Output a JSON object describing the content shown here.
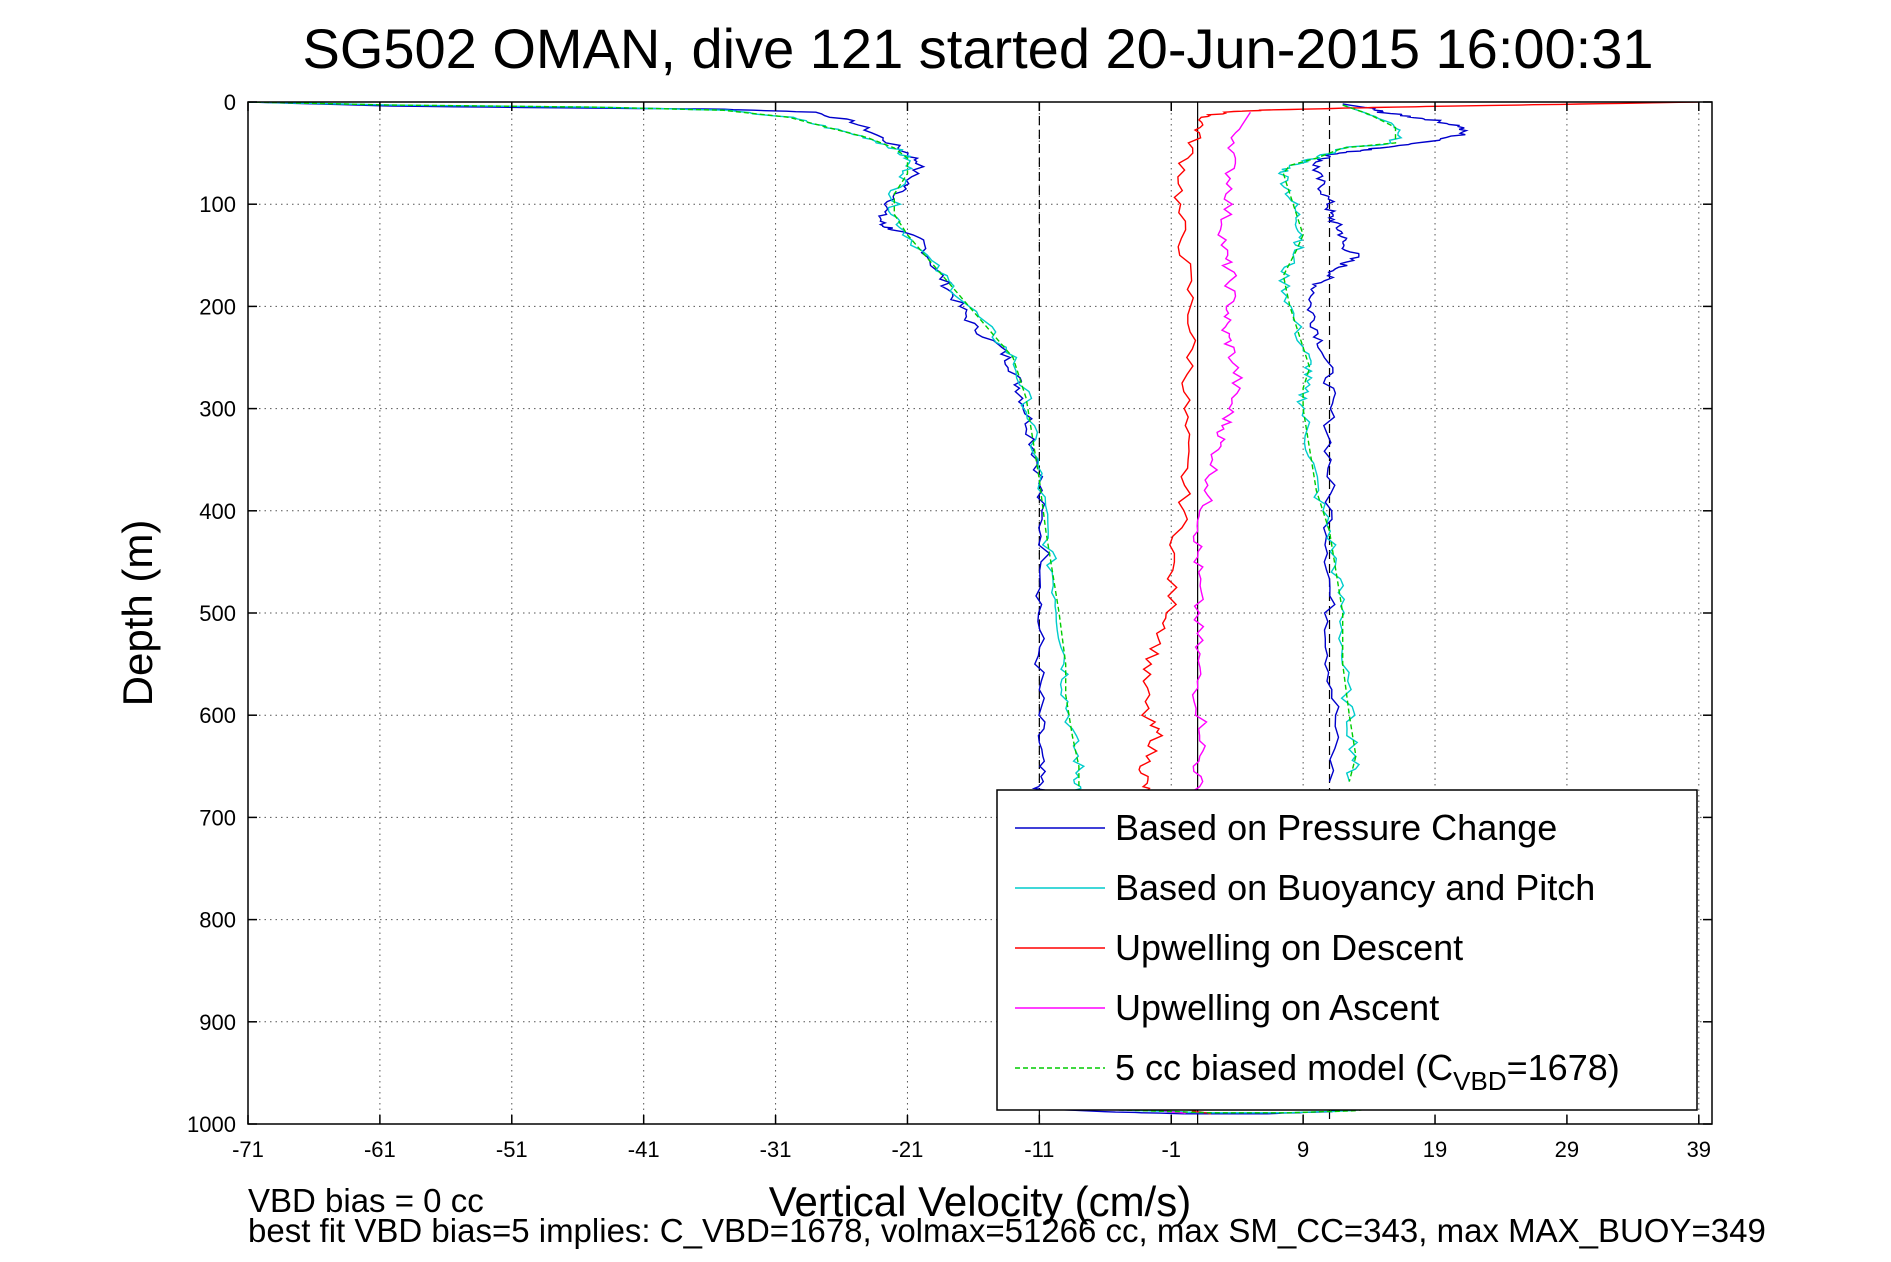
{
  "chart_data": {
    "type": "line",
    "title": "SG502 OMAN, dive 121 started 20-Jun-2015 16:00:31",
    "xlabel": "Vertical Velocity (cm/s)",
    "ylabel": "Depth (m)",
    "xlim": [
      -71,
      40
    ],
    "ylim": [
      1000,
      0
    ],
    "y_reversed": true,
    "xticks": [
      -71,
      -61,
      -51,
      -41,
      -31,
      -21,
      -11,
      -1,
      9,
      19,
      29,
      39
    ],
    "yticks": [
      0,
      100,
      200,
      300,
      400,
      500,
      600,
      700,
      800,
      900,
      1000
    ],
    "grid": true,
    "legend_position": "bottom-right",
    "reference_lines": [
      {
        "x": -11,
        "style": "dashed"
      },
      {
        "x": 1,
        "style": "solid"
      },
      {
        "x": 11,
        "style": "dashed"
      }
    ],
    "series": [
      {
        "name": "Based on Pressure Change",
        "color": "#0000cc",
        "segments": [
          {
            "x": [
              -71,
              -60,
              -45,
              -35,
              -28,
              -25,
              -23,
              -21,
              -20,
              -21,
              -22,
              -23,
              -23,
              -22,
              -20,
              -19,
              -18,
              -17,
              -16,
              -14,
              -13,
              -12.5,
              -12,
              -11.5,
              -11,
              -11,
              -10.5,
              -11,
              -11,
              -11,
              -11,
              -11,
              -11
            ],
            "y": [
              0,
              4,
              6,
              7,
              10,
              20,
              35,
              50,
              60,
              80,
              95,
              110,
              120,
              125,
              135,
              160,
              180,
              200,
              220,
              240,
              260,
              280,
              300,
              330,
              360,
              400,
              450,
              500,
              550,
              600,
              640,
              670,
              680
            ]
          },
          {
            "x": [
              12,
              14,
              15,
              17,
              19,
              21,
              21,
              18,
              15,
              13,
              11,
              10,
              10,
              10.5,
              11,
              11,
              11.5,
              12,
              12,
              13,
              12,
              11,
              10,
              9.5,
              10,
              10.5,
              11,
              11,
              11,
              11,
              11,
              11,
              11,
              11.5,
              11
            ],
            "y": [
              2,
              6,
              10,
              14,
              18,
              24,
              32,
              40,
              45,
              48,
              52,
              60,
              70,
              85,
              100,
              110,
              120,
              130,
              140,
              150,
              160,
              170,
              180,
              200,
              220,
              240,
              270,
              300,
              350,
              400,
              450,
              500,
              550,
              600,
              665
            ]
          },
          {
            "x": [
              -11,
              -6,
              0,
              6,
              11,
              14
            ],
            "y": [
              985,
              988,
              990,
              990,
              988,
              985
            ]
          }
        ]
      },
      {
        "name": "Based on Buoyancy and Pitch",
        "color": "#00cccc",
        "segments": [
          {
            "x": [
              -71,
              -60,
              -45,
              -35,
              -30,
              -27,
              -24,
              -22,
              -21,
              -21,
              -22,
              -22,
              -21,
              -19,
              -17,
              -15,
              -13,
              -12,
              -11.5,
              -11,
              -10.5,
              -10,
              -9.5,
              -9,
              -9,
              -8.5,
              -8,
              -8,
              -8
            ],
            "y": [
              0,
              3,
              5,
              8,
              15,
              25,
              35,
              45,
              55,
              70,
              90,
              110,
              130,
              160,
              190,
              220,
              250,
              290,
              330,
              370,
              420,
              460,
              500,
              550,
              580,
              620,
              650,
              670,
              680
            ]
          },
          {
            "x": [
              12,
              14,
              16,
              16,
              12,
              10,
              8,
              7.5,
              8,
              8.5,
              9,
              8.5,
              7.5,
              8,
              9,
              9.5,
              9,
              9,
              9.5,
              10,
              11,
              11.5,
              12,
              12,
              12.5,
              13,
              12.5
            ],
            "y": [
              3,
              12,
              25,
              40,
              45,
              55,
              62,
              70,
              90,
              110,
              130,
              145,
              170,
              200,
              240,
              260,
              280,
              300,
              340,
              380,
              420,
              460,
              500,
              550,
              600,
              640,
              665
            ]
          },
          {
            "x": [
              -8,
              -3,
              2,
              8,
              13,
              15
            ],
            "y": [
              985,
              987,
              989,
              989,
              987,
              983
            ]
          }
        ]
      },
      {
        "name": "Upwelling on Descent",
        "color": "#ff0000",
        "segments": [
          {
            "x": [
              39,
              30,
              20,
              12,
              6,
              3,
              1.5,
              1,
              0,
              -0.5,
              0,
              0.5,
              0.5,
              0,
              0,
              0,
              -1,
              -1,
              -2,
              -3,
              -3,
              -2,
              -3,
              -3,
              -3
            ],
            "y": [
              0,
              2,
              4,
              6,
              8,
              10,
              15,
              30,
              60,
              100,
              150,
              200,
              250,
              300,
              350,
              400,
              450,
              500,
              530,
              560,
              600,
              620,
              650,
              670,
              680
            ]
          },
          {
            "x": [
              -1,
              0,
              1,
              2
            ],
            "y": [
              980,
              985,
              988,
              990
            ]
          }
        ]
      },
      {
        "name": "Upwelling on Ascent",
        "color": "#ff00ff",
        "segments": [
          {
            "x": [
              5,
              4,
              3.5,
              3.5,
              3,
              3,
              3.5,
              3.5,
              3,
              3.5,
              4,
              3.5,
              3,
              2.5,
              2,
              1.5,
              1,
              1,
              1,
              1,
              1,
              1.5,
              1,
              1
            ],
            "y": [
              10,
              30,
              60,
              90,
              120,
              150,
              170,
              200,
              220,
              240,
              270,
              300,
              320,
              340,
              370,
              400,
              430,
              460,
              500,
              540,
              580,
              620,
              650,
              680
            ]
          },
          {
            "x": [
              -4,
              -2,
              0
            ],
            "y": [
              982,
              986,
              990
            ]
          }
        ]
      },
      {
        "name": "5 cc biased model (C_VBD=1678)",
        "color": "#00cc00",
        "dashed": true,
        "segments": [
          {
            "x": [
              -71,
              -60,
              -45,
              -35,
              -30,
              -27,
              -24,
              -22,
              -21,
              -21,
              -22,
              -22,
              -21,
              -19,
              -17,
              -15,
              -13,
              -12,
              -11.5,
              -11,
              -10.5,
              -10,
              -9.5,
              -9,
              -9,
              -8.5,
              -8,
              -8,
              -8
            ],
            "y": [
              0,
              3,
              5,
              8,
              15,
              25,
              35,
              45,
              55,
              70,
              90,
              110,
              130,
              160,
              190,
              220,
              250,
              290,
              330,
              370,
              420,
              460,
              500,
              550,
              580,
              620,
              650,
              670,
              680
            ]
          },
          {
            "x": [
              12,
              14,
              16,
              16,
              12,
              10,
              8,
              7.5,
              8,
              8.5,
              9,
              8.5,
              7.5,
              8,
              9,
              9.5,
              9,
              9,
              9.5,
              10,
              11,
              11.5,
              12,
              12,
              12.5,
              13,
              12.5
            ],
            "y": [
              3,
              12,
              25,
              40,
              45,
              55,
              62,
              70,
              90,
              110,
              130,
              145,
              170,
              200,
              240,
              260,
              280,
              300,
              340,
              380,
              420,
              460,
              500,
              550,
              600,
              640,
              665
            ]
          },
          {
            "x": [
              -8,
              -3,
              2,
              8,
              13,
              15
            ],
            "y": [
              985,
              987,
              989,
              989,
              987,
              983
            ]
          }
        ]
      }
    ],
    "legend_entries": [
      {
        "text": "Based on Pressure Change",
        "color": "#0000cc",
        "dashed": false
      },
      {
        "text": "Based on Buoyancy and Pitch",
        "color": "#00cccc",
        "dashed": false
      },
      {
        "text": "Upwelling on Descent",
        "color": "#ff0000",
        "dashed": false
      },
      {
        "text": "Upwelling on Ascent",
        "color": "#ff00ff",
        "dashed": false
      },
      {
        "text_main": "5 cc biased model (C",
        "text_sub": "VBD",
        "text_end": "=1678)",
        "color": "#00cc00",
        "dashed": true
      }
    ]
  },
  "footnotes": {
    "line1": "VBD bias = 0 cc",
    "line2": "best fit VBD bias=5 implies: C_VBD=1678, volmax=51266 cc, max SM_CC=343, max MAX_BUOY=349"
  }
}
